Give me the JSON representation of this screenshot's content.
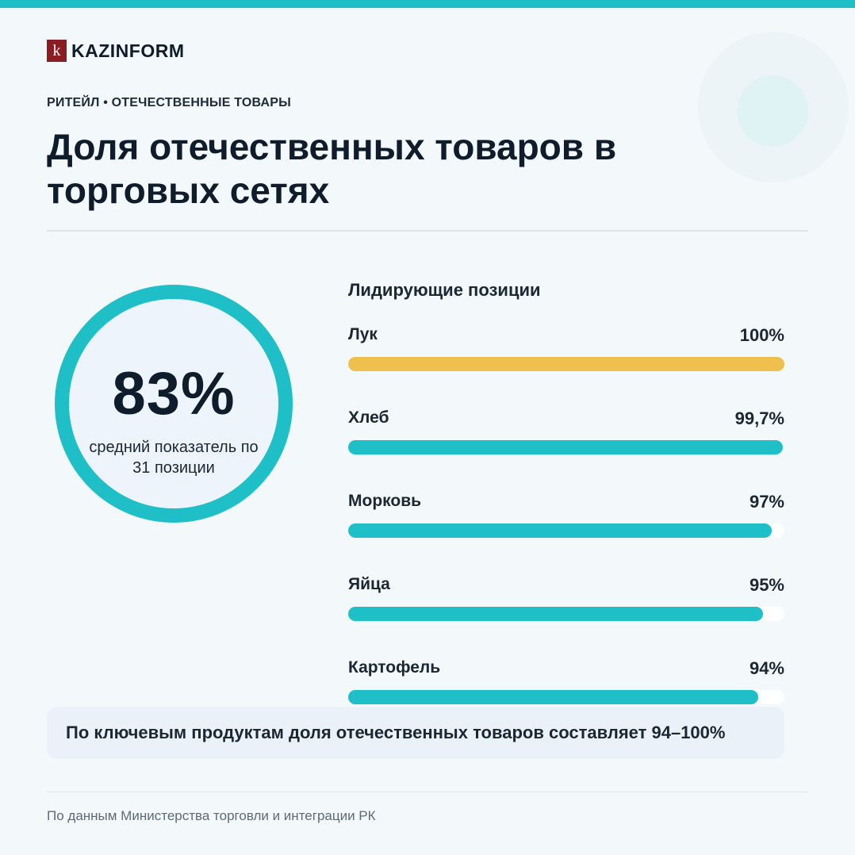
{
  "brand": {
    "logo_mark": "k",
    "name": "KAZINFORM"
  },
  "kicker": "РИТЕЙЛ • ОТЕЧЕСТВЕННЫЕ ТОВАРЫ",
  "title": "Доля отечественных товаров в торговых сетях",
  "stat": {
    "value": "83%",
    "caption": "средний показатель по 31 позиции"
  },
  "chart_data": {
    "type": "bar",
    "orientation": "horizontal",
    "title": "Лидирующие позиции",
    "categories": [
      "Лук",
      "Хлеб",
      "Морковь",
      "Яйца",
      "Картофель"
    ],
    "values": [
      100,
      99.7,
      97,
      95,
      94
    ],
    "value_labels": [
      "100%",
      "99,7%",
      "97%",
      "95%",
      "94%"
    ],
    "xlim": [
      0,
      100
    ],
    "colors": [
      "#f0c04e",
      "#1fbfc8",
      "#1fbfc8",
      "#1fbfc8",
      "#1fbfc8"
    ],
    "track_color": "#ffffff"
  },
  "note": "По ключевым продуктам доля отечественных товаров составляет 94–100%",
  "source": "По данным Министерства торговли и интеграции РК",
  "colors": {
    "accent": "#1fbfc8",
    "highlight": "#f0c04e",
    "brand": "#8a1c22",
    "text": "#0f1c2b"
  }
}
